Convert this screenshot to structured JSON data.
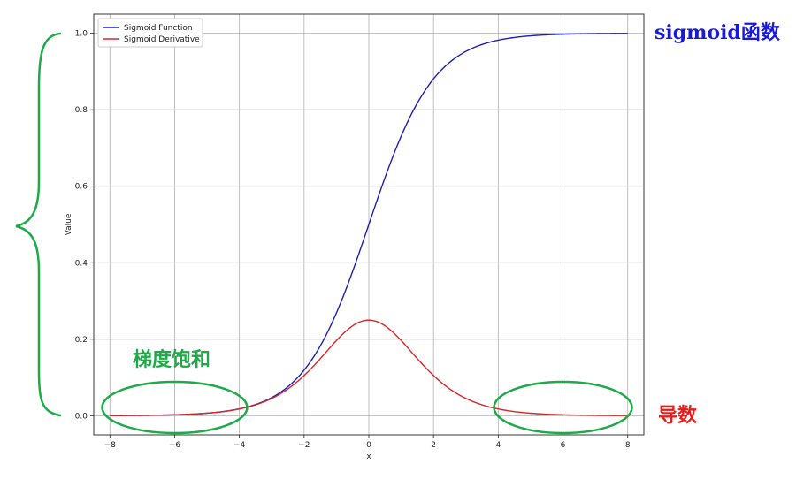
{
  "chart_data": {
    "type": "line",
    "title": "",
    "xlabel": "x",
    "ylabel": "Value",
    "xlim": [
      -8.5,
      8.5
    ],
    "ylim": [
      -0.05,
      1.05
    ],
    "x_ticks": [
      -8,
      -6,
      -4,
      -2,
      0,
      2,
      4,
      6,
      8
    ],
    "x_tick_labels": [
      "−8",
      "−6",
      "−4",
      "−2",
      "0",
      "2",
      "4",
      "6",
      "8"
    ],
    "y_ticks": [
      0.0,
      0.2,
      0.4,
      0.6,
      0.8,
      1.0
    ],
    "y_tick_labels": [
      "0.0",
      "0.2",
      "0.4",
      "0.6",
      "0.8",
      "1.0"
    ],
    "grid": true,
    "legend_position": "top-left",
    "x_range": [
      -8,
      8
    ],
    "series": [
      {
        "name": "Sigmoid Function",
        "color": "#1f1fb4",
        "x": [
          -8,
          -7,
          -6,
          -5,
          -4,
          -3,
          -2,
          -1,
          0,
          1,
          2,
          3,
          4,
          5,
          6,
          7,
          8
        ],
        "values": [
          0.0003,
          0.0009,
          0.0025,
          0.0067,
          0.018,
          0.0474,
          0.1192,
          0.2689,
          0.5,
          0.7311,
          0.8808,
          0.9526,
          0.982,
          0.9933,
          0.9975,
          0.9991,
          0.9997
        ]
      },
      {
        "name": "Sigmoid Derivative",
        "color": "#d62728",
        "x": [
          -8,
          -7,
          -6,
          -5,
          -4,
          -3,
          -2,
          -1,
          0,
          1,
          2,
          3,
          4,
          5,
          6,
          7,
          8
        ],
        "values": [
          0.0003,
          0.0009,
          0.0025,
          0.0066,
          0.0177,
          0.0452,
          0.105,
          0.1966,
          0.25,
          0.1966,
          0.105,
          0.0452,
          0.0177,
          0.0066,
          0.0025,
          0.0009,
          0.0003
        ]
      }
    ]
  },
  "annotations": {
    "sigmoid_label": "sigmoid函数",
    "sigmoid_label_color": "#1a1ad6",
    "derivative_label": "导数",
    "derivative_label_color": "#e0201c",
    "saturation_label": "梯度饱和",
    "saturation_color": "#1faa4a",
    "ellipses_centered_at_x": [
      -6,
      6
    ]
  }
}
